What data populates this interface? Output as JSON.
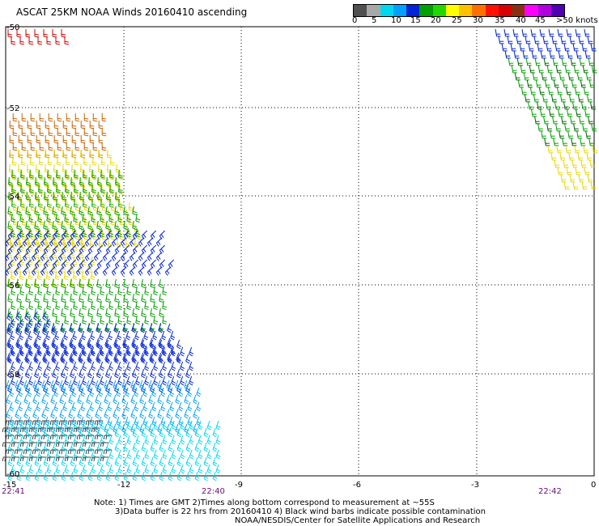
{
  "title": "ASCAT 25KM NOAA Winds 20160410 ascending",
  "legend": {
    "colors": [
      "#505050",
      "#a8a8a8",
      "#00d8f0",
      "#00a0ff",
      "#0022d8",
      "#00a000",
      "#22d800",
      "#ffff00",
      "#ffc000",
      "#ff7000",
      "#ff1000",
      "#d80000",
      "#8a3010",
      "#ff00ff",
      "#b000e0",
      "#5000b0"
    ],
    "labels": [
      "0",
      "5",
      "10",
      "15",
      "20",
      "25",
      "30",
      "35",
      "40",
      "45",
      ">50 knots"
    ]
  },
  "map": {
    "lon_ticks": [
      "-15",
      "-12",
      "-9",
      "-6",
      "-3",
      "0"
    ],
    "lat_ticks": [
      "-50",
      "-52",
      "-54",
      "-56",
      "-58",
      "-60"
    ],
    "lon_range": [
      -15,
      0
    ],
    "lat_range": [
      -60,
      -50
    ],
    "grid": "dotted",
    "times": [
      "22:41",
      "22:40",
      "22:42"
    ]
  },
  "notes": {
    "line1": "Note: 1) Times are GMT 2)Times along bottom correspond to measurement at ~55S",
    "line2": "3)Data buffer is 22 hrs from 20160410 4) Black wind barbs indicate possible contamination",
    "line3": "NOAA/NESDIS/Center for Satellite Applications and Research"
  }
}
